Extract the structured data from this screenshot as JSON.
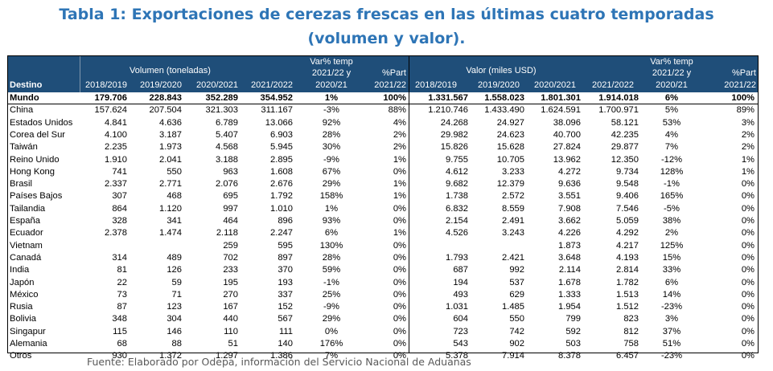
{
  "title": {
    "line1": "Tabla 1: Exportaciones de cerezas frescas en las últimas cuatro temporadas",
    "line2": "(volumen y valor)."
  },
  "header": {
    "destino": "Destino",
    "volumen_group": "Volumen (toneladas)",
    "valor_group": "Valor (miles USD)",
    "var_label_1": "Var% temp",
    "var_label_2": "2021/22 y",
    "var_label_3": "2020/21",
    "part_label_1": "%Part",
    "part_label_2": "2021/22",
    "seasons": [
      "2018/2019",
      "2019/2020",
      "2020/2021",
      "2021/2022"
    ],
    "val_seasons": [
      "2018/2019",
      "2019/2020",
      "2020/2021",
      "2021/2022"
    ]
  },
  "rows": [
    {
      "destino": "Mundo",
      "v": [
        "179.706",
        "228.843",
        "352.289",
        "354.952"
      ],
      "vvar": "1%",
      "vpart": "100%",
      "m": [
        "1.331.567",
        "1.558.023",
        "1.801.301",
        "1.914.018"
      ],
      "mvar": "6%",
      "mpart": "100%"
    },
    {
      "destino": "China",
      "v": [
        "157.624",
        "207.504",
        "321.303",
        "311.167"
      ],
      "vvar": "-3%",
      "vpart": "88%",
      "m": [
        "1.210.746",
        "1.433.490",
        "1.624.591",
        "1.700.971"
      ],
      "mvar": "5%",
      "mpart": "89%"
    },
    {
      "destino": "Estados Unidos",
      "v": [
        "4.841",
        "4.636",
        "6.789",
        "13.066"
      ],
      "vvar": "92%",
      "vpart": "4%",
      "m": [
        "24.268",
        "24.927",
        "38.096",
        "58.121"
      ],
      "mvar": "53%",
      "mpart": "3%"
    },
    {
      "destino": "Corea del Sur",
      "v": [
        "4.100",
        "3.187",
        "5.407",
        "6.903"
      ],
      "vvar": "28%",
      "vpart": "2%",
      "m": [
        "29.982",
        "24.623",
        "40.700",
        "42.235"
      ],
      "mvar": "4%",
      "mpart": "2%"
    },
    {
      "destino": "Taiwán",
      "v": [
        "2.235",
        "1.973",
        "4.568",
        "5.945"
      ],
      "vvar": "30%",
      "vpart": "2%",
      "m": [
        "15.826",
        "15.628",
        "27.824",
        "29.877"
      ],
      "mvar": "7%",
      "mpart": "2%"
    },
    {
      "destino": "Reino Unido",
      "v": [
        "1.910",
        "2.041",
        "3.188",
        "2.895"
      ],
      "vvar": "-9%",
      "vpart": "1%",
      "m": [
        "9.755",
        "10.705",
        "13.962",
        "12.350"
      ],
      "mvar": "-12%",
      "mpart": "1%"
    },
    {
      "destino": "Hong Kong",
      "v": [
        "741",
        "550",
        "963",
        "1.608"
      ],
      "vvar": "67%",
      "vpart": "0%",
      "m": [
        "4.612",
        "3.233",
        "4.272",
        "9.734"
      ],
      "mvar": "128%",
      "mpart": "1%"
    },
    {
      "destino": "Brasil",
      "v": [
        "2.337",
        "2.771",
        "2.076",
        "2.676"
      ],
      "vvar": "29%",
      "vpart": "1%",
      "m": [
        "9.682",
        "12.379",
        "9.636",
        "9.548"
      ],
      "mvar": "-1%",
      "mpart": "0%"
    },
    {
      "destino": "Países Bajos",
      "v": [
        "307",
        "468",
        "695",
        "1.792"
      ],
      "vvar": "158%",
      "vpart": "1%",
      "m": [
        "1.738",
        "2.572",
        "3.551",
        "9.406"
      ],
      "mvar": "165%",
      "mpart": "0%"
    },
    {
      "destino": "Tailandia",
      "v": [
        "864",
        "1.120",
        "997",
        "1.010"
      ],
      "vvar": "1%",
      "vpart": "0%",
      "m": [
        "6.832",
        "8.559",
        "7.908",
        "7.546"
      ],
      "mvar": "-5%",
      "mpart": "0%"
    },
    {
      "destino": "España",
      "v": [
        "328",
        "341",
        "464",
        "896"
      ],
      "vvar": "93%",
      "vpart": "0%",
      "m": [
        "2.154",
        "2.491",
        "3.662",
        "5.059"
      ],
      "mvar": "38%",
      "mpart": "0%"
    },
    {
      "destino": "Ecuador",
      "v": [
        "2.378",
        "1.474",
        "2.118",
        "2.247"
      ],
      "vvar": "6%",
      "vpart": "1%",
      "m": [
        "4.526",
        "3.243",
        "4.226",
        "4.292"
      ],
      "mvar": "2%",
      "mpart": "0%"
    },
    {
      "destino": "Vietnam",
      "v": [
        "",
        "",
        "259",
        "595"
      ],
      "vvar": "130%",
      "vpart": "0%",
      "m": [
        "",
        "",
        "1.873",
        "4.217"
      ],
      "mvar": "125%",
      "mpart": "0%"
    },
    {
      "destino": "Canadá",
      "v": [
        "314",
        "489",
        "702",
        "897"
      ],
      "vvar": "28%",
      "vpart": "0%",
      "m": [
        "1.793",
        "2.421",
        "3.648",
        "4.193"
      ],
      "mvar": "15%",
      "mpart": "0%"
    },
    {
      "destino": "India",
      "v": [
        "81",
        "126",
        "233",
        "370"
      ],
      "vvar": "59%",
      "vpart": "0%",
      "m": [
        "687",
        "992",
        "2.114",
        "2.814"
      ],
      "mvar": "33%",
      "mpart": "0%"
    },
    {
      "destino": "Japón",
      "v": [
        "22",
        "59",
        "195",
        "193"
      ],
      "vvar": "-1%",
      "vpart": "0%",
      "m": [
        "194",
        "537",
        "1.678",
        "1.782"
      ],
      "mvar": "6%",
      "mpart": "0%"
    },
    {
      "destino": "México",
      "v": [
        "73",
        "71",
        "270",
        "337"
      ],
      "vvar": "25%",
      "vpart": "0%",
      "m": [
        "493",
        "629",
        "1.333",
        "1.513"
      ],
      "mvar": "14%",
      "mpart": "0%"
    },
    {
      "destino": "Rusia",
      "v": [
        "87",
        "123",
        "167",
        "152"
      ],
      "vvar": "-9%",
      "vpart": "0%",
      "m": [
        "1.031",
        "1.485",
        "1.954",
        "1.512"
      ],
      "mvar": "-23%",
      "mpart": "0%"
    },
    {
      "destino": "Bolivia",
      "v": [
        "348",
        "304",
        "440",
        "567"
      ],
      "vvar": "29%",
      "vpart": "0%",
      "m": [
        "604",
        "550",
        "799",
        "823"
      ],
      "mvar": "3%",
      "mpart": "0%"
    },
    {
      "destino": "Singapur",
      "v": [
        "115",
        "146",
        "110",
        "111"
      ],
      "vvar": "0%",
      "vpart": "0%",
      "m": [
        "723",
        "742",
        "592",
        "812"
      ],
      "mvar": "37%",
      "mpart": "0%"
    },
    {
      "destino": "Alemania",
      "v": [
        "68",
        "88",
        "51",
        "140"
      ],
      "vvar": "176%",
      "vpart": "0%",
      "m": [
        "543",
        "902",
        "503",
        "758"
      ],
      "mvar": "51%",
      "mpart": "0%"
    },
    {
      "destino": "Otros",
      "v": [
        "930",
        "1.372",
        "1.297",
        "1.386"
      ],
      "vvar": "7%",
      "vpart": "0%",
      "m": [
        "5.378",
        "7.914",
        "8.378",
        "6.457"
      ],
      "mvar": "-23%",
      "mpart": "0%"
    }
  ],
  "source": "Fuente: Elaborado por Odepa, información del Servicio Nacional de Aduanas",
  "colors": {
    "title": "#2E75B6",
    "header_bg": "#1F4E79",
    "header_text": "#FFFFFF",
    "source": "#595959"
  }
}
